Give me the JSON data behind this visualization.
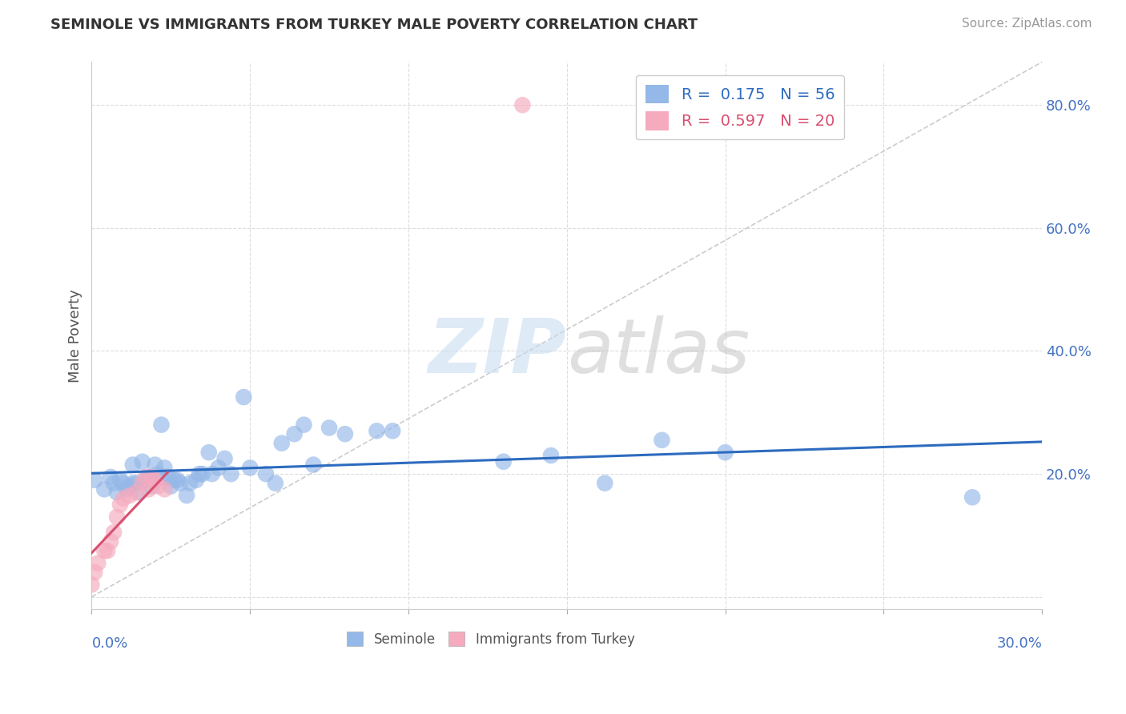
{
  "title": "SEMINOLE VS IMMIGRANTS FROM TURKEY MALE POVERTY CORRELATION CHART",
  "source": "Source: ZipAtlas.com",
  "ylabel": "Male Poverty",
  "xlim": [
    0.0,
    0.3
  ],
  "ylim": [
    -0.02,
    0.87
  ],
  "yticks": [
    0.0,
    0.2,
    0.4,
    0.6,
    0.8
  ],
  "ytick_labels": [
    "",
    "20.0%",
    "40.0%",
    "60.0%",
    "80.0%"
  ],
  "seminole_R": 0.175,
  "seminole_N": 56,
  "turkey_R": 0.597,
  "turkey_N": 20,
  "seminole_color": "#94b8e8",
  "turkey_color": "#f5aabe",
  "seminole_line_color": "#2d6bbf",
  "turkey_line_color": "#d94f70",
  "diagonal_color": "#cccccc",
  "seminole_x": [
    0.001,
    0.004,
    0.006,
    0.007,
    0.008,
    0.009,
    0.01,
    0.011,
    0.012,
    0.013,
    0.013,
    0.014,
    0.015,
    0.016,
    0.017,
    0.018,
    0.019,
    0.02,
    0.02,
    0.021,
    0.022,
    0.022,
    0.023,
    0.024,
    0.025,
    0.026,
    0.027,
    0.028,
    0.03,
    0.031,
    0.033,
    0.034,
    0.035,
    0.037,
    0.038,
    0.04,
    0.042,
    0.044,
    0.048,
    0.05,
    0.055,
    0.058,
    0.06,
    0.064,
    0.067,
    0.07,
    0.075,
    0.08,
    0.09,
    0.095,
    0.13,
    0.145,
    0.162,
    0.18,
    0.2,
    0.278
  ],
  "seminole_y": [
    0.19,
    0.175,
    0.195,
    0.185,
    0.17,
    0.19,
    0.185,
    0.175,
    0.18,
    0.185,
    0.215,
    0.185,
    0.17,
    0.22,
    0.19,
    0.195,
    0.18,
    0.215,
    0.19,
    0.2,
    0.195,
    0.28,
    0.21,
    0.195,
    0.18,
    0.19,
    0.19,
    0.185,
    0.165,
    0.185,
    0.19,
    0.2,
    0.2,
    0.235,
    0.2,
    0.21,
    0.225,
    0.2,
    0.325,
    0.21,
    0.2,
    0.185,
    0.25,
    0.265,
    0.28,
    0.215,
    0.275,
    0.265,
    0.27,
    0.27,
    0.22,
    0.23,
    0.185,
    0.255,
    0.235,
    0.162
  ],
  "turkey_x": [
    0.0,
    0.001,
    0.002,
    0.004,
    0.005,
    0.006,
    0.007,
    0.008,
    0.009,
    0.01,
    0.012,
    0.014,
    0.016,
    0.017,
    0.018,
    0.019,
    0.02,
    0.021,
    0.023,
    0.136
  ],
  "turkey_y": [
    0.02,
    0.04,
    0.055,
    0.075,
    0.075,
    0.09,
    0.105,
    0.13,
    0.15,
    0.16,
    0.165,
    0.17,
    0.185,
    0.195,
    0.175,
    0.195,
    0.19,
    0.18,
    0.175,
    0.8
  ]
}
